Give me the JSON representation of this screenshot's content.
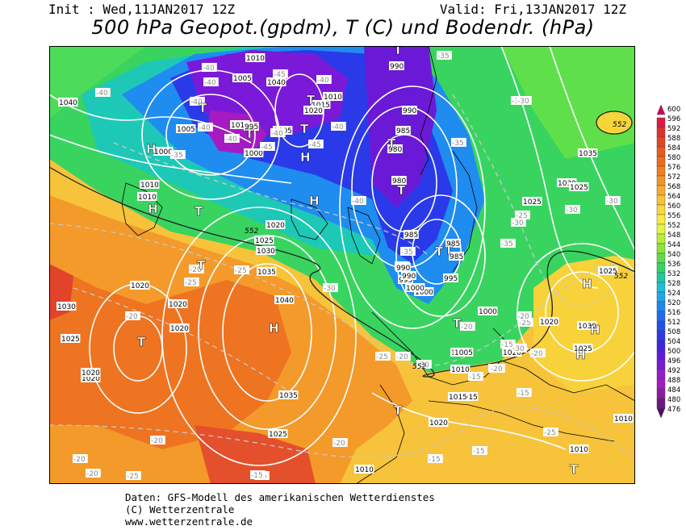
{
  "header": {
    "init": "Init : Wed,11JAN2017 12Z",
    "valid": "Valid: Fri,13JAN2017 12Z",
    "title": "500 hPa Geopot.(gpdm), T (C) und Bodendr. (hPa)"
  },
  "map": {
    "pressure_labels": [
      "1040",
      "1010",
      "1005",
      "1040",
      "1010",
      "1005",
      "1000",
      "1010",
      "995",
      "1000",
      "1005",
      "1015",
      "1020",
      "1010",
      "1010",
      "990",
      "990",
      "985",
      "980",
      "980",
      "985",
      "985",
      "990",
      "985",
      "990",
      "995",
      "990",
      "995",
      "1000",
      "1000",
      "1000",
      "1005",
      "1010",
      "1015",
      "1020",
      "1025",
      "1030",
      "1035",
      "1040",
      "1020",
      "1020",
      "1020",
      "1030",
      "1025",
      "1020",
      "1025",
      "1035",
      "1030",
      "1025",
      "1025",
      "1030",
      "1025",
      "1035",
      "1025",
      "1020",
      "1020",
      "1020",
      "1010",
      "1010",
      "1015",
      "1005",
      "1020",
      "1010"
    ],
    "temperature_labels": [
      "-40",
      "-40",
      "-45",
      "-40",
      "-40",
      "-40",
      "-35",
      "-45",
      "-40",
      "-40",
      "-45",
      "-35",
      "-30",
      "-40",
      "-40",
      "-40",
      "-35",
      "-35",
      "-30",
      "-25",
      "-30",
      "-30",
      "-30",
      "-35",
      "-30",
      "-25",
      "-25",
      "-25",
      "-30",
      "-30",
      "-25",
      "-20",
      "-20",
      "-20",
      "-20",
      "-20",
      "-20",
      "-20",
      "-20",
      "-25",
      "-25",
      "-20",
      "-15",
      "-15",
      "-15",
      "-15",
      "-15",
      "-15",
      "-15",
      "-20",
      "-20",
      "-25"
    ],
    "geopotential_labels": [
      "552",
      "552",
      "552",
      "552"
    ],
    "pressure_systems": [
      {
        "symbol": "H"
      },
      {
        "symbol": "H"
      },
      {
        "symbol": "H"
      },
      {
        "symbol": "H"
      },
      {
        "symbol": "H"
      },
      {
        "symbol": "H"
      },
      {
        "symbol": "H"
      },
      {
        "symbol": "H"
      },
      {
        "symbol": "T"
      },
      {
        "symbol": "T"
      },
      {
        "symbol": "T"
      },
      {
        "symbol": "T"
      },
      {
        "symbol": "T"
      },
      {
        "symbol": "T"
      },
      {
        "symbol": "T"
      },
      {
        "symbol": "T"
      },
      {
        "symbol": "T"
      },
      {
        "symbol": "T"
      },
      {
        "symbol": "T"
      },
      {
        "symbol": "T"
      },
      {
        "symbol": "T"
      },
      {
        "symbol": "T"
      },
      {
        "symbol": "T"
      }
    ]
  },
  "legend": {
    "unit": "gpdm",
    "levels": [
      "600",
      "596",
      "592",
      "588",
      "584",
      "580",
      "576",
      "572",
      "568",
      "564",
      "560",
      "556",
      "552",
      "548",
      "544",
      "540",
      "536",
      "532",
      "528",
      "524",
      "520",
      "516",
      "512",
      "508",
      "504",
      "500",
      "496",
      "492",
      "488",
      "484",
      "480",
      "476"
    ],
    "colors": [
      "#d1025a",
      "#dd1a3e",
      "#e2302c",
      "#e54424",
      "#ea5a1e",
      "#ef6c1c",
      "#f27f21",
      "#f49528",
      "#f6ab2f",
      "#f8c235",
      "#fad83a",
      "#fbeb3f",
      "#e6f33e",
      "#b8ec3b",
      "#8ee43d",
      "#5ddc48",
      "#36d466",
      "#1dcba0",
      "#1ebfd2",
      "#1fa6ea",
      "#1f87f0",
      "#1f6af1",
      "#2150ee",
      "#2a3ae8",
      "#3e25e2",
      "#5a1bde",
      "#7a1ad8",
      "#961ad0",
      "#a61ac4",
      "#8f1a9e",
      "#6d1680",
      "#4b1360"
    ]
  },
  "footer": {
    "line1": "Daten: GFS-Modell des amerikanischen Wetterdienstes",
    "line2": "(C) Wetterzentrale",
    "line3": "www.wetterzentrale.de"
  }
}
